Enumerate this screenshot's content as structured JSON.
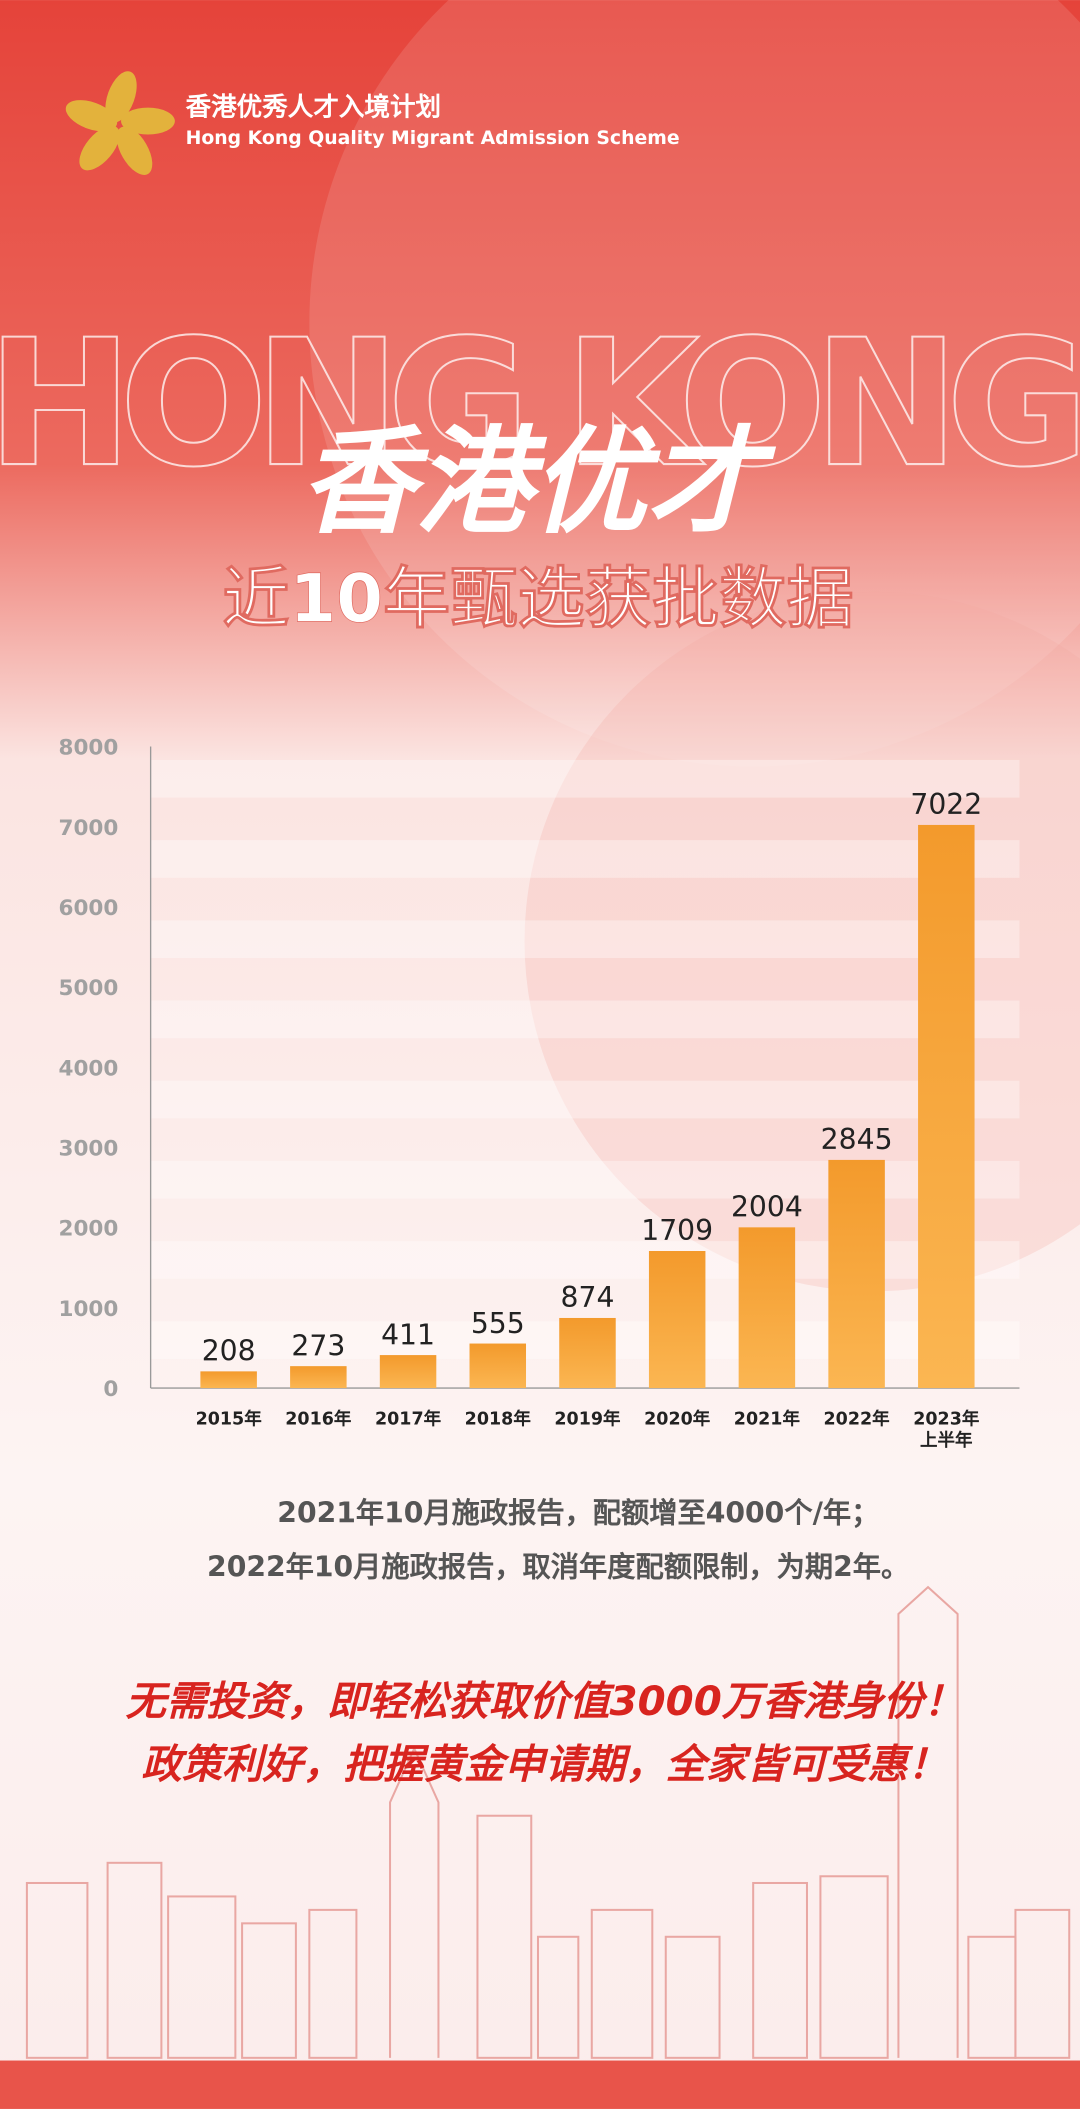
{
  "header": {
    "logo_cn": "香港优秀人才入境计划",
    "logo_en": "Hong Kong Quality Migrant Admission Scheme",
    "watermark": "HONG KONG",
    "title": "香港优才",
    "subtitle": "近10年甄选获批数据"
  },
  "chart_data": {
    "type": "bar",
    "categories": [
      "2015年",
      "2016年",
      "2017年",
      "2018年",
      "2019年",
      "2020年",
      "2021年",
      "2022年",
      "2023年\n上半年"
    ],
    "values": [
      208,
      273,
      411,
      555,
      874,
      1709,
      2004,
      2845,
      7022
    ],
    "color": "#f39a2c",
    "ylim": [
      0,
      8000
    ],
    "yticks": [
      0,
      1000,
      2000,
      3000,
      4000,
      5000,
      6000,
      7000,
      8000
    ],
    "grid": false
  },
  "notes": [
    "2021年10月施政报告，配额增至4000个/年；",
    "2022年10月施政报告，取消年度配额限制，为期2年。"
  ],
  "slogans": [
    "无需投资，即轻松获取价值3000万香港身份！",
    "政策利好，把握黄金申请期，全家皆可受惠！"
  ]
}
